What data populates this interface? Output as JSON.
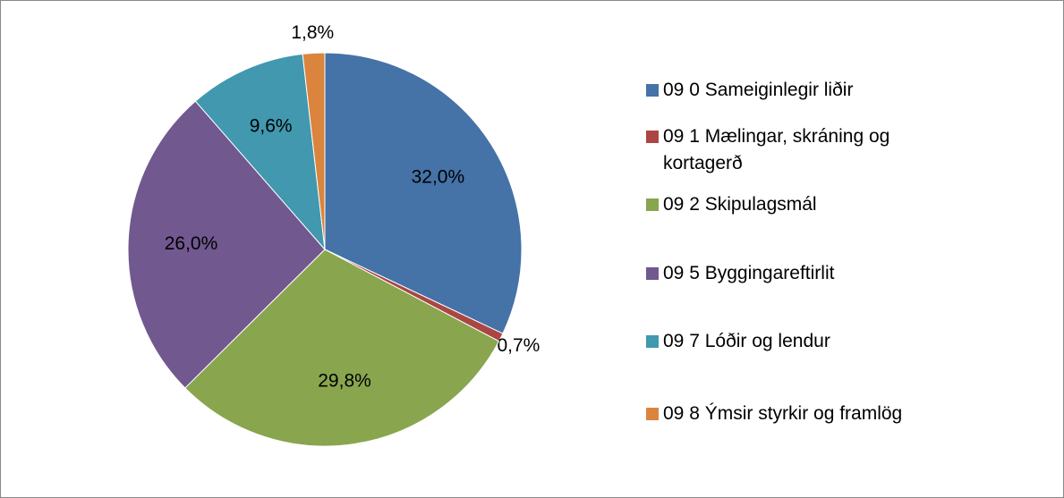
{
  "chart_data": {
    "type": "pie",
    "categories": [
      "09 0 Sameiginlegir liðir",
      "09 1 Mælingar, skráning og kortagerð",
      "09 2 Skipulagsmál",
      "09 5 Byggingareftirlit",
      "09 7 Lóðir og lendur",
      "09 8 Ýmsir styrkir og framlög"
    ],
    "values": [
      32.0,
      0.7,
      29.8,
      26.0,
      9.6,
      1.8
    ],
    "value_labels": [
      "32,0%",
      "0,7%",
      "29,8%",
      "26,0%",
      "9,6%",
      "1,8%"
    ],
    "colors": [
      "#4572a7",
      "#aa4643",
      "#89a54e",
      "#71588f",
      "#4198af",
      "#db843d"
    ],
    "legend": "right"
  }
}
